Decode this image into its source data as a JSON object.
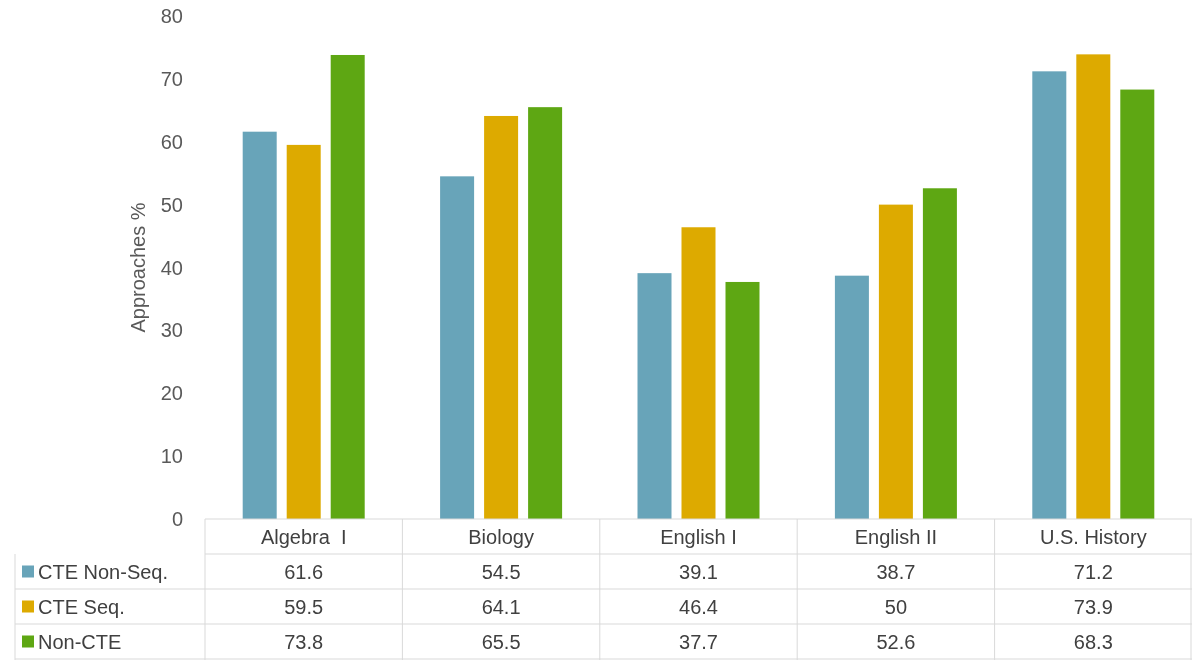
{
  "chart_data": {
    "type": "bar",
    "ylabel": "Approaches %",
    "categories": [
      "Algebra  I",
      "Biology",
      "English I",
      "English II",
      "U.S. History"
    ],
    "series": [
      {
        "name": "CTE Non-Seq.",
        "color": "#68a4b9",
        "values": [
          61.6,
          54.5,
          39.1,
          38.7,
          71.2
        ]
      },
      {
        "name": "CTE Seq.",
        "color": "#ddaa00",
        "values": [
          59.5,
          64.1,
          46.4,
          50,
          73.9
        ]
      },
      {
        "name": "Non-CTE",
        "color": "#5ea713",
        "values": [
          73.8,
          65.5,
          37.7,
          52.6,
          68.3
        ]
      }
    ],
    "ylim": [
      0,
      80
    ],
    "yticks": [
      0,
      10,
      20,
      30,
      40,
      50,
      60,
      70,
      80
    ],
    "grid": false,
    "legend": "bottom",
    "data_labels": true
  }
}
